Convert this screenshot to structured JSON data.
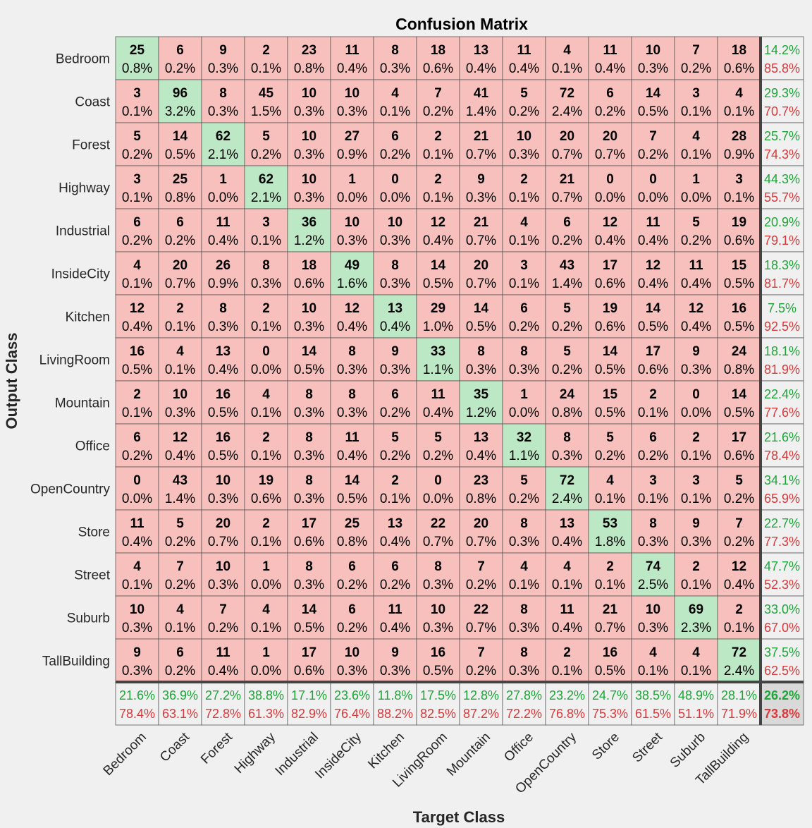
{
  "chart_data": {
    "type": "heatmap",
    "title": "Confusion Matrix",
    "xlabel": "Target Class",
    "ylabel": "Output Class",
    "classes": [
      "Bedroom",
      "Coast",
      "Forest",
      "Highway",
      "Industrial",
      "InsideCity",
      "Kitchen",
      "LivingRoom",
      "Mountain",
      "Office",
      "OpenCountry",
      "Store",
      "Street",
      "Suburb",
      "TallBuilding"
    ],
    "counts": [
      [
        25,
        6,
        9,
        2,
        23,
        11,
        8,
        18,
        13,
        11,
        4,
        11,
        10,
        7,
        18
      ],
      [
        3,
        96,
        8,
        45,
        10,
        10,
        4,
        7,
        41,
        5,
        72,
        6,
        14,
        3,
        4
      ],
      [
        5,
        14,
        62,
        5,
        10,
        27,
        6,
        2,
        21,
        10,
        20,
        20,
        7,
        4,
        28
      ],
      [
        3,
        25,
        1,
        62,
        10,
        1,
        0,
        2,
        9,
        2,
        21,
        0,
        0,
        1,
        3
      ],
      [
        6,
        6,
        11,
        3,
        36,
        10,
        10,
        12,
        21,
        4,
        6,
        12,
        11,
        5,
        19
      ],
      [
        4,
        20,
        26,
        8,
        18,
        49,
        8,
        14,
        20,
        3,
        43,
        17,
        12,
        11,
        15
      ],
      [
        12,
        2,
        8,
        2,
        10,
        12,
        13,
        29,
        14,
        6,
        5,
        19,
        14,
        12,
        16
      ],
      [
        16,
        4,
        13,
        0,
        14,
        8,
        9,
        33,
        8,
        8,
        5,
        14,
        17,
        9,
        24
      ],
      [
        2,
        10,
        16,
        4,
        8,
        8,
        6,
        11,
        35,
        1,
        24,
        15,
        2,
        0,
        14
      ],
      [
        6,
        12,
        16,
        2,
        8,
        11,
        5,
        5,
        13,
        32,
        8,
        5,
        6,
        2,
        17
      ],
      [
        0,
        43,
        10,
        19,
        8,
        14,
        2,
        0,
        23,
        5,
        72,
        4,
        3,
        3,
        5
      ],
      [
        11,
        5,
        20,
        2,
        17,
        25,
        13,
        22,
        20,
        8,
        13,
        53,
        8,
        9,
        7
      ],
      [
        4,
        7,
        10,
        1,
        8,
        6,
        6,
        8,
        7,
        4,
        4,
        2,
        74,
        2,
        12
      ],
      [
        10,
        4,
        7,
        4,
        14,
        6,
        11,
        10,
        22,
        8,
        11,
        21,
        10,
        69,
        2
      ],
      [
        9,
        6,
        11,
        1,
        17,
        10,
        9,
        16,
        7,
        8,
        2,
        16,
        4,
        4,
        72
      ]
    ],
    "percents": [
      [
        "0.8%",
        "0.2%",
        "0.3%",
        "0.1%",
        "0.8%",
        "0.4%",
        "0.3%",
        "0.6%",
        "0.4%",
        "0.4%",
        "0.1%",
        "0.4%",
        "0.3%",
        "0.2%",
        "0.6%"
      ],
      [
        "0.1%",
        "3.2%",
        "0.3%",
        "1.5%",
        "0.3%",
        "0.3%",
        "0.1%",
        "0.2%",
        "1.4%",
        "0.2%",
        "2.4%",
        "0.2%",
        "0.5%",
        "0.1%",
        "0.1%"
      ],
      [
        "0.2%",
        "0.5%",
        "2.1%",
        "0.2%",
        "0.3%",
        "0.9%",
        "0.2%",
        "0.1%",
        "0.7%",
        "0.3%",
        "0.7%",
        "0.7%",
        "0.2%",
        "0.1%",
        "0.9%"
      ],
      [
        "0.1%",
        "0.8%",
        "0.0%",
        "2.1%",
        "0.3%",
        "0.0%",
        "0.0%",
        "0.1%",
        "0.3%",
        "0.1%",
        "0.7%",
        "0.0%",
        "0.0%",
        "0.0%",
        "0.1%"
      ],
      [
        "0.2%",
        "0.2%",
        "0.4%",
        "0.1%",
        "1.2%",
        "0.3%",
        "0.3%",
        "0.4%",
        "0.7%",
        "0.1%",
        "0.2%",
        "0.4%",
        "0.4%",
        "0.2%",
        "0.6%"
      ],
      [
        "0.1%",
        "0.7%",
        "0.9%",
        "0.3%",
        "0.6%",
        "1.6%",
        "0.3%",
        "0.5%",
        "0.7%",
        "0.1%",
        "1.4%",
        "0.6%",
        "0.4%",
        "0.4%",
        "0.5%"
      ],
      [
        "0.4%",
        "0.1%",
        "0.3%",
        "0.1%",
        "0.3%",
        "0.4%",
        "0.4%",
        "1.0%",
        "0.5%",
        "0.2%",
        "0.2%",
        "0.6%",
        "0.5%",
        "0.4%",
        "0.5%"
      ],
      [
        "0.5%",
        "0.1%",
        "0.4%",
        "0.0%",
        "0.5%",
        "0.3%",
        "0.3%",
        "1.1%",
        "0.3%",
        "0.3%",
        "0.2%",
        "0.5%",
        "0.6%",
        "0.3%",
        "0.8%"
      ],
      [
        "0.1%",
        "0.3%",
        "0.5%",
        "0.1%",
        "0.3%",
        "0.3%",
        "0.2%",
        "0.4%",
        "1.2%",
        "0.0%",
        "0.8%",
        "0.5%",
        "0.1%",
        "0.0%",
        "0.5%"
      ],
      [
        "0.2%",
        "0.4%",
        "0.5%",
        "0.1%",
        "0.3%",
        "0.4%",
        "0.2%",
        "0.2%",
        "0.4%",
        "1.1%",
        "0.3%",
        "0.2%",
        "0.2%",
        "0.1%",
        "0.6%"
      ],
      [
        "0.0%",
        "1.4%",
        "0.3%",
        "0.6%",
        "0.3%",
        "0.5%",
        "0.1%",
        "0.0%",
        "0.8%",
        "0.2%",
        "2.4%",
        "0.1%",
        "0.1%",
        "0.1%",
        "0.2%"
      ],
      [
        "0.4%",
        "0.2%",
        "0.7%",
        "0.1%",
        "0.6%",
        "0.8%",
        "0.4%",
        "0.7%",
        "0.7%",
        "0.3%",
        "0.4%",
        "1.8%",
        "0.3%",
        "0.3%",
        "0.2%"
      ],
      [
        "0.1%",
        "0.2%",
        "0.3%",
        "0.0%",
        "0.3%",
        "0.2%",
        "0.2%",
        "0.3%",
        "0.2%",
        "0.1%",
        "0.1%",
        "0.1%",
        "2.5%",
        "0.1%",
        "0.4%"
      ],
      [
        "0.3%",
        "0.1%",
        "0.2%",
        "0.1%",
        "0.5%",
        "0.2%",
        "0.4%",
        "0.3%",
        "0.7%",
        "0.3%",
        "0.4%",
        "0.7%",
        "0.3%",
        "2.3%",
        "0.1%"
      ],
      [
        "0.3%",
        "0.2%",
        "0.4%",
        "0.0%",
        "0.6%",
        "0.3%",
        "0.3%",
        "0.5%",
        "0.2%",
        "0.3%",
        "0.1%",
        "0.5%",
        "0.1%",
        "0.1%",
        "2.4%"
      ]
    ],
    "row_summary": [
      [
        "14.2%",
        "85.8%"
      ],
      [
        "29.3%",
        "70.7%"
      ],
      [
        "25.7%",
        "74.3%"
      ],
      [
        "44.3%",
        "55.7%"
      ],
      [
        "20.9%",
        "79.1%"
      ],
      [
        "18.3%",
        "81.7%"
      ],
      [
        "7.5%",
        "92.5%"
      ],
      [
        "18.1%",
        "81.9%"
      ],
      [
        "22.4%",
        "77.6%"
      ],
      [
        "21.6%",
        "78.4%"
      ],
      [
        "34.1%",
        "65.9%"
      ],
      [
        "22.7%",
        "77.3%"
      ],
      [
        "47.7%",
        "52.3%"
      ],
      [
        "33.0%",
        "67.0%"
      ],
      [
        "37.5%",
        "62.5%"
      ]
    ],
    "col_summary": [
      [
        "21.6%",
        "78.4%"
      ],
      [
        "36.9%",
        "63.1%"
      ],
      [
        "27.2%",
        "72.8%"
      ],
      [
        "38.8%",
        "61.3%"
      ],
      [
        "17.1%",
        "82.9%"
      ],
      [
        "23.6%",
        "76.4%"
      ],
      [
        "11.8%",
        "88.2%"
      ],
      [
        "17.5%",
        "82.5%"
      ],
      [
        "12.8%",
        "87.2%"
      ],
      [
        "27.8%",
        "72.2%"
      ],
      [
        "23.2%",
        "76.8%"
      ],
      [
        "24.7%",
        "75.3%"
      ],
      [
        "38.5%",
        "61.5%"
      ],
      [
        "48.9%",
        "51.1%"
      ],
      [
        "28.1%",
        "71.9%"
      ]
    ],
    "overall": [
      "26.2%",
      "73.8%"
    ],
    "colors": {
      "correct_fill": "#bde8c5",
      "incorrect_fill": "#f8c0bc",
      "summary_fill": "#f0f0f0",
      "overall_fill": "#d9d9d9",
      "green_text": "#1ea538",
      "red_text": "#d9393a",
      "grid_line": "#555555",
      "background": "#f0f0f0"
    }
  }
}
